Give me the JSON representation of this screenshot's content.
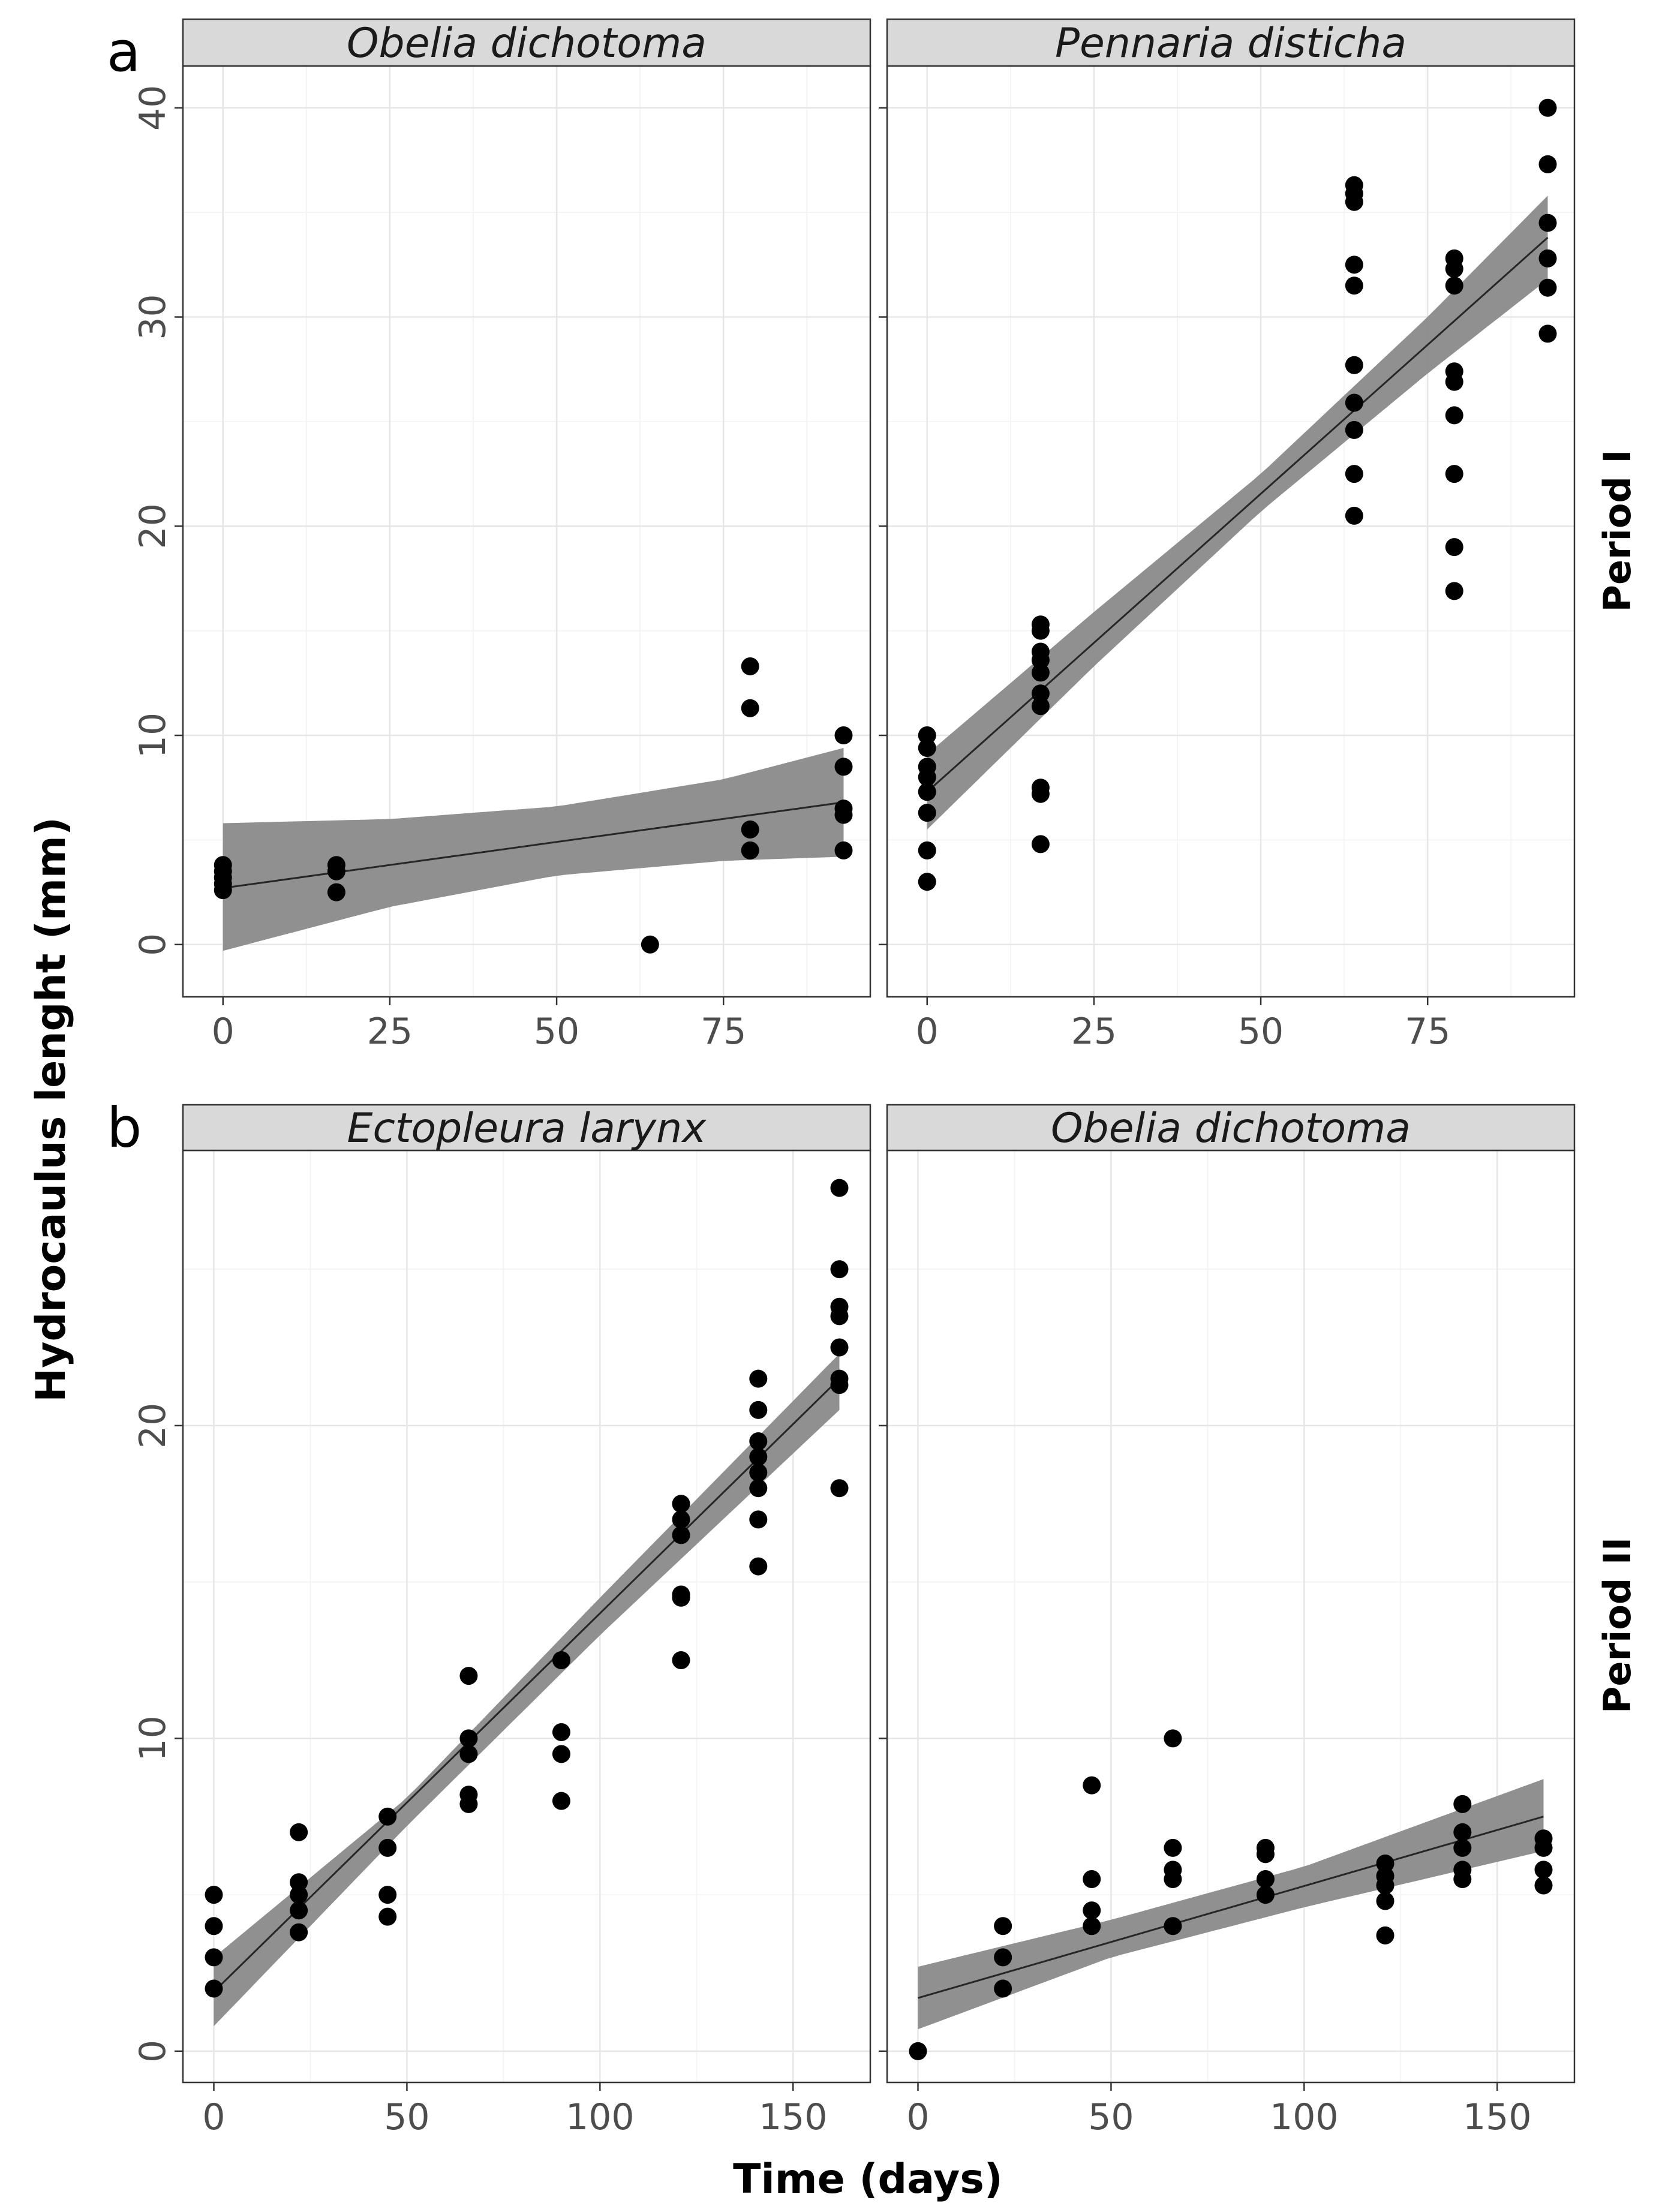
{
  "figure": {
    "panel_tags": [
      "a",
      "b"
    ],
    "row_labels": [
      "Period I",
      "Period II"
    ],
    "xlabel": "Time (days)",
    "ylabel": "Hydrocaulus lenght (mm)"
  },
  "colors": {
    "points": "#000000",
    "ribbon": "#8a8a8a",
    "line": "#262626",
    "grid_major": "#e6e6e6",
    "grid_minor": "#f4f4f4",
    "strip_fill": "#d9d9d9",
    "frame": "#333333"
  },
  "chart_data": [
    {
      "type": "scatter",
      "panel": "a",
      "row": "Period I",
      "title": "Obelia dichotoma",
      "xlabel": "Time (days)",
      "ylabel": "Hydrocaulus lenght (mm)",
      "xlim": [
        -6,
        97
      ],
      "ylim": [
        -2.5,
        42
      ],
      "xticks": [
        0,
        25,
        50,
        75
      ],
      "yticks": [
        0,
        10,
        20,
        30,
        40
      ],
      "grid": true,
      "points": [
        {
          "x": 0,
          "y": 2.6
        },
        {
          "x": 0,
          "y": 2.9
        },
        {
          "x": 0,
          "y": 3.2
        },
        {
          "x": 0,
          "y": 3.5
        },
        {
          "x": 0,
          "y": 3.8
        },
        {
          "x": 17,
          "y": 2.5
        },
        {
          "x": 17,
          "y": 3.5
        },
        {
          "x": 17,
          "y": 3.8
        },
        {
          "x": 64,
          "y": 0
        },
        {
          "x": 79,
          "y": 4.5
        },
        {
          "x": 79,
          "y": 5.5
        },
        {
          "x": 79,
          "y": 11.3
        },
        {
          "x": 79,
          "y": 13.3
        },
        {
          "x": 93,
          "y": 4.5
        },
        {
          "x": 93,
          "y": 6.2
        },
        {
          "x": 93,
          "y": 6.5
        },
        {
          "x": 93,
          "y": 8.5
        },
        {
          "x": 93,
          "y": 10.0
        }
      ],
      "fit": {
        "x": [
          0,
          93
        ],
        "y": [
          2.7,
          6.8
        ],
        "band_x": [
          0,
          25,
          50,
          75,
          93
        ],
        "band_lower": [
          -0.3,
          1.8,
          3.3,
          4.0,
          4.2
        ],
        "band_upper": [
          5.8,
          6.0,
          6.6,
          7.9,
          9.4
        ]
      }
    },
    {
      "type": "scatter",
      "panel": "a",
      "row": "Period I",
      "title": "Pennaria disticha",
      "xlabel": "Time (days)",
      "ylabel": "Hydrocaulus lenght (mm)",
      "xlim": [
        -6,
        97
      ],
      "ylim": [
        -2.5,
        42
      ],
      "xticks": [
        0,
        25,
        50,
        75
      ],
      "yticks": [
        0,
        10,
        20,
        30,
        40
      ],
      "grid": true,
      "points": [
        {
          "x": 0,
          "y": 3.0
        },
        {
          "x": 0,
          "y": 4.5
        },
        {
          "x": 0,
          "y": 6.3
        },
        {
          "x": 0,
          "y": 7.3
        },
        {
          "x": 0,
          "y": 8.0
        },
        {
          "x": 0,
          "y": 8.5
        },
        {
          "x": 0,
          "y": 9.4
        },
        {
          "x": 0,
          "y": 10.0
        },
        {
          "x": 17,
          "y": 4.8
        },
        {
          "x": 17,
          "y": 7.2
        },
        {
          "x": 17,
          "y": 7.5
        },
        {
          "x": 17,
          "y": 11.4
        },
        {
          "x": 17,
          "y": 12.0
        },
        {
          "x": 17,
          "y": 13.0
        },
        {
          "x": 17,
          "y": 13.6
        },
        {
          "x": 17,
          "y": 14.0
        },
        {
          "x": 17,
          "y": 15.0
        },
        {
          "x": 17,
          "y": 15.3
        },
        {
          "x": 64,
          "y": 20.5
        },
        {
          "x": 64,
          "y": 22.5
        },
        {
          "x": 64,
          "y": 24.6
        },
        {
          "x": 64,
          "y": 25.9
        },
        {
          "x": 64,
          "y": 27.7
        },
        {
          "x": 64,
          "y": 31.5
        },
        {
          "x": 64,
          "y": 32.5
        },
        {
          "x": 64,
          "y": 35.5
        },
        {
          "x": 64,
          "y": 35.9
        },
        {
          "x": 64,
          "y": 36.3
        },
        {
          "x": 79,
          "y": 16.9
        },
        {
          "x": 79,
          "y": 19.0
        },
        {
          "x": 79,
          "y": 22.5
        },
        {
          "x": 79,
          "y": 25.3
        },
        {
          "x": 79,
          "y": 26.9
        },
        {
          "x": 79,
          "y": 27.4
        },
        {
          "x": 79,
          "y": 31.5
        },
        {
          "x": 79,
          "y": 32.3
        },
        {
          "x": 79,
          "y": 32.8
        },
        {
          "x": 93,
          "y": 29.2
        },
        {
          "x": 93,
          "y": 31.4
        },
        {
          "x": 93,
          "y": 32.8
        },
        {
          "x": 93,
          "y": 34.5
        },
        {
          "x": 93,
          "y": 37.3
        },
        {
          "x": 93,
          "y": 40.0
        }
      ],
      "fit": {
        "x": [
          0,
          93
        ],
        "y": [
          7.3,
          33.8
        ],
        "band_x": [
          0,
          25,
          50,
          75,
          93
        ],
        "band_lower": [
          5.5,
          13.3,
          20.7,
          27.3,
          31.8
        ],
        "band_upper": [
          9.1,
          15.9,
          22.5,
          30.0,
          35.8
        ]
      }
    },
    {
      "type": "scatter",
      "panel": "b",
      "row": "Period II",
      "title": "Ectopleura larynx",
      "xlabel": "Time (days)",
      "ylabel": "Hydrocaulus lenght (mm)",
      "xlim": [
        -8,
        170
      ],
      "ylim": [
        -1.0,
        28.8
      ],
      "xticks": [
        0,
        50,
        100,
        150
      ],
      "yticks": [
        0,
        10,
        20
      ],
      "grid": true,
      "points": [
        {
          "x": 0,
          "y": 2.0
        },
        {
          "x": 0,
          "y": 3.0
        },
        {
          "x": 0,
          "y": 4.0
        },
        {
          "x": 0,
          "y": 5.0
        },
        {
          "x": 22,
          "y": 3.8
        },
        {
          "x": 22,
          "y": 4.5
        },
        {
          "x": 22,
          "y": 5.0
        },
        {
          "x": 22,
          "y": 5.4
        },
        {
          "x": 22,
          "y": 7.0
        },
        {
          "x": 45,
          "y": 4.3
        },
        {
          "x": 45,
          "y": 5.0
        },
        {
          "x": 45,
          "y": 6.5
        },
        {
          "x": 45,
          "y": 7.5
        },
        {
          "x": 66,
          "y": 7.9
        },
        {
          "x": 66,
          "y": 8.2
        },
        {
          "x": 66,
          "y": 9.5
        },
        {
          "x": 66,
          "y": 10.0
        },
        {
          "x": 66,
          "y": 12.0
        },
        {
          "x": 90,
          "y": 8.0
        },
        {
          "x": 90,
          "y": 9.5
        },
        {
          "x": 90,
          "y": 10.2
        },
        {
          "x": 90,
          "y": 12.5
        },
        {
          "x": 121,
          "y": 12.5
        },
        {
          "x": 121,
          "y": 14.5
        },
        {
          "x": 121,
          "y": 14.6
        },
        {
          "x": 121,
          "y": 16.5
        },
        {
          "x": 121,
          "y": 17.0
        },
        {
          "x": 121,
          "y": 17.5
        },
        {
          "x": 141,
          "y": 15.5
        },
        {
          "x": 141,
          "y": 17.0
        },
        {
          "x": 141,
          "y": 18.0
        },
        {
          "x": 141,
          "y": 18.5
        },
        {
          "x": 141,
          "y": 19.0
        },
        {
          "x": 141,
          "y": 19.5
        },
        {
          "x": 141,
          "y": 20.5
        },
        {
          "x": 141,
          "y": 21.5
        },
        {
          "x": 162,
          "y": 18.0
        },
        {
          "x": 162,
          "y": 21.3
        },
        {
          "x": 162,
          "y": 21.5
        },
        {
          "x": 162,
          "y": 22.5
        },
        {
          "x": 162,
          "y": 23.5
        },
        {
          "x": 162,
          "y": 23.8
        },
        {
          "x": 162,
          "y": 25.0
        },
        {
          "x": 162,
          "y": 27.6
        }
      ],
      "fit": {
        "x": [
          0,
          162
        ],
        "y": [
          1.9,
          21.5
        ],
        "band_x": [
          0,
          50,
          100,
          162
        ],
        "band_lower": [
          0.8,
          7.2,
          13.3,
          20.5
        ],
        "band_upper": [
          3.0,
          8.1,
          14.5,
          22.3
        ]
      }
    },
    {
      "type": "scatter",
      "panel": "b",
      "row": "Period II",
      "title": "Obelia dichotoma",
      "xlabel": "Time (days)",
      "ylabel": "Hydrocaulus lenght (mm)",
      "xlim": [
        -8,
        170
      ],
      "ylim": [
        -1.0,
        28.8
      ],
      "xticks": [
        0,
        50,
        100,
        150
      ],
      "yticks": [
        0,
        10,
        20
      ],
      "grid": true,
      "points": [
        {
          "x": 0,
          "y": 0.0
        },
        {
          "x": 22,
          "y": 2.0
        },
        {
          "x": 22,
          "y": 3.0
        },
        {
          "x": 22,
          "y": 4.0
        },
        {
          "x": 45,
          "y": 4.0
        },
        {
          "x": 45,
          "y": 4.5
        },
        {
          "x": 45,
          "y": 5.5
        },
        {
          "x": 45,
          "y": 8.5
        },
        {
          "x": 66,
          "y": 4.0
        },
        {
          "x": 66,
          "y": 5.5
        },
        {
          "x": 66,
          "y": 5.8
        },
        {
          "x": 66,
          "y": 6.5
        },
        {
          "x": 66,
          "y": 10.0
        },
        {
          "x": 90,
          "y": 5.0
        },
        {
          "x": 90,
          "y": 5.5
        },
        {
          "x": 90,
          "y": 6.3
        },
        {
          "x": 90,
          "y": 6.5
        },
        {
          "x": 121,
          "y": 3.7
        },
        {
          "x": 121,
          "y": 4.8
        },
        {
          "x": 121,
          "y": 5.3
        },
        {
          "x": 121,
          "y": 5.6
        },
        {
          "x": 121,
          "y": 6.0
        },
        {
          "x": 141,
          "y": 5.5
        },
        {
          "x": 141,
          "y": 5.8
        },
        {
          "x": 141,
          "y": 6.5
        },
        {
          "x": 141,
          "y": 7.0
        },
        {
          "x": 141,
          "y": 7.9
        },
        {
          "x": 162,
          "y": 5.3
        },
        {
          "x": 162,
          "y": 5.8
        },
        {
          "x": 162,
          "y": 6.5
        },
        {
          "x": 162,
          "y": 6.8
        }
      ],
      "fit": {
        "x": [
          0,
          162
        ],
        "y": [
          1.7,
          7.5
        ],
        "band_x": [
          0,
          50,
          100,
          162
        ],
        "band_lower": [
          0.7,
          3.0,
          4.6,
          6.4
        ],
        "band_upper": [
          2.7,
          4.2,
          5.9,
          8.7
        ]
      }
    }
  ]
}
